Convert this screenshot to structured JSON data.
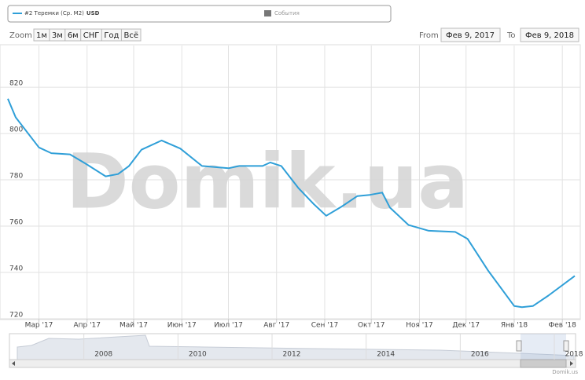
{
  "chart_data": {
    "type": "line",
    "watermark": "Domik.ua",
    "credit": "Domik.us",
    "legend": {
      "events_label": "События",
      "events_color": "#777777"
    },
    "range_selector": {
      "zoom_label": "Zoom",
      "buttons": [
        "1м",
        "3м",
        "6м",
        "СНГ",
        "Год",
        "Всё"
      ],
      "from_label": "From",
      "from": "Фев 9, 2017",
      "to_label": "To",
      "to": "Фев 9, 2018"
    },
    "x": [
      "2017-02-09",
      "2017-02-14",
      "2017-03-01",
      "2017-03-09",
      "2017-03-21",
      "2017-03-31",
      "2017-04-13",
      "2017-04-21",
      "2017-04-28",
      "2017-05-06",
      "2017-05-19",
      "2017-05-31",
      "2017-06-14",
      "2017-07-01",
      "2017-07-08",
      "2017-07-23",
      "2017-07-28",
      "2017-08-04",
      "2017-08-15",
      "2017-08-25",
      "2017-09-02",
      "2017-09-12",
      "2017-09-22",
      "2017-09-30",
      "2017-10-08",
      "2017-10-13",
      "2017-10-25",
      "2017-11-07",
      "2017-11-24",
      "2017-12-02",
      "2017-12-15",
      "2018-01-01",
      "2018-01-06",
      "2018-01-13",
      "2018-01-23",
      "2018-02-09"
    ],
    "series": [
      {
        "name": "#2 Теремки (Ср. М2)",
        "currency": "USD",
        "color": "#2f9fd8",
        "values": [
          815,
          807,
          794,
          791.5,
          791,
          787,
          781.5,
          782.5,
          786,
          793,
          797,
          793.5,
          786,
          785,
          786,
          786,
          787.5,
          786,
          776.5,
          769.5,
          764.5,
          768.5,
          773,
          773.5,
          774.5,
          768,
          760.5,
          758,
          757.5,
          754.5,
          741,
          725.5,
          725,
          725.5,
          730,
          738.5
        ]
      }
    ],
    "xlim": [
      "2017-02-09",
      "2018-02-09"
    ],
    "xticks": [
      {
        "value": "2017-03-01",
        "label": "Мар '17"
      },
      {
        "value": "2017-04-01",
        "label": "Апр '17"
      },
      {
        "value": "2017-05-01",
        "label": "Май '17"
      },
      {
        "value": "2017-06-01",
        "label": "Июн '17"
      },
      {
        "value": "2017-07-01",
        "label": "Июл '17"
      },
      {
        "value": "2017-08-01",
        "label": "Авг '17"
      },
      {
        "value": "2017-09-01",
        "label": "Сен '17"
      },
      {
        "value": "2017-10-01",
        "label": "Окт '17"
      },
      {
        "value": "2017-11-01",
        "label": "Ноя '17"
      },
      {
        "value": "2017-12-01",
        "label": "Дек '17"
      },
      {
        "value": "2018-01-01",
        "label": "Янв '18"
      },
      {
        "value": "2018-02-01",
        "label": "Фев '18"
      }
    ],
    "ylim": [
      720,
      838
    ],
    "yticks": [
      720,
      740,
      760,
      780,
      800,
      820
    ],
    "grid": true,
    "navigator": {
      "xlim": [
        2006,
        2018
      ],
      "xticks": [
        2008,
        2010,
        2012,
        2014,
        2016,
        2018
      ]
    }
  }
}
